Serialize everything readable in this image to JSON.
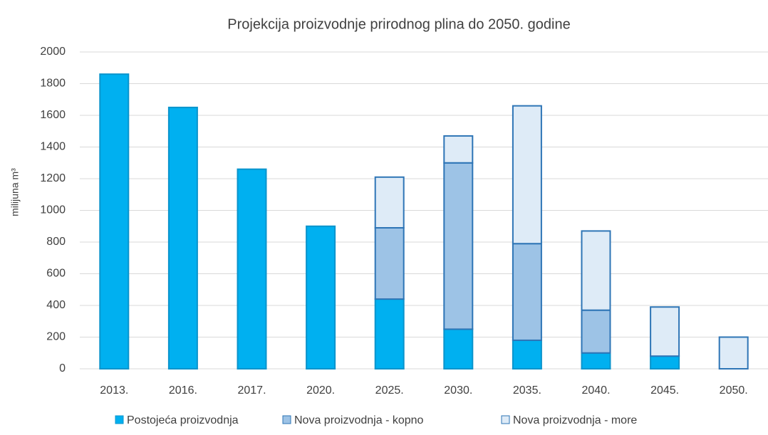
{
  "chart_data": {
    "type": "stacked_bar",
    "title": "Projekcija proizvodnje prirodnog plina do 2050. godine",
    "y_label": "milijuna m³",
    "categories": [
      "2013.",
      "2016.",
      "2017.",
      "2020.",
      "2025.",
      "2030.",
      "2035.",
      "2040.",
      "2045.",
      "2050."
    ],
    "series": [
      {
        "name": "Postojeća proizvodnja",
        "color": "#00b0f0",
        "values": [
          1860,
          1650,
          1260,
          900,
          440,
          250,
          180,
          100,
          80,
          0
        ]
      },
      {
        "name": "Nova proizvodnja - kopno",
        "color": "#9dc3e6",
        "values": [
          0,
          0,
          0,
          0,
          450,
          1050,
          610,
          270,
          0,
          0
        ]
      },
      {
        "name": "Nova proizvodnja - more",
        "color": "#deebf7",
        "values": [
          0,
          0,
          0,
          0,
          320,
          170,
          870,
          500,
          310,
          200
        ]
      }
    ],
    "ylim": [
      0,
      2000
    ],
    "yticks": [
      0,
      200,
      400,
      600,
      800,
      1000,
      1200,
      1400,
      1600,
      1800,
      2000
    ],
    "grid": true,
    "legend": "bottom"
  }
}
